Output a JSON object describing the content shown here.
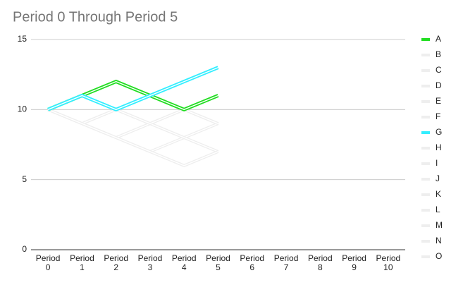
{
  "chart_data": {
    "type": "line",
    "title": "Period 0 Through Period 5",
    "categories": [
      "Period 0",
      "Period 1",
      "Period 2",
      "Period 3",
      "Period 4",
      "Period 5",
      "Period 6",
      "Period 7",
      "Period 8",
      "Period 9",
      "Period 10"
    ],
    "ylim": [
      0,
      15
    ],
    "yticks": [
      0,
      5,
      10,
      15
    ],
    "grid": true,
    "legend": "right",
    "series": [
      {
        "name": "A",
        "color": "#22dd22",
        "values": [
          10,
          11,
          12,
          11,
          10,
          11,
          null,
          null,
          null,
          null,
          null
        ]
      },
      {
        "name": "B",
        "color": "#eeeeee",
        "values": [
          10,
          11,
          12,
          11,
          10,
          11,
          null,
          null,
          null,
          null,
          null
        ]
      },
      {
        "name": "C",
        "color": "#eeeeee",
        "values": [
          10,
          9,
          8,
          7,
          6,
          7,
          null,
          null,
          null,
          null,
          null
        ]
      },
      {
        "name": "D",
        "color": "#eeeeee",
        "values": [
          10,
          9,
          10,
          9,
          10,
          9,
          null,
          null,
          null,
          null,
          null
        ]
      },
      {
        "name": "E",
        "color": "#eeeeee",
        "values": [
          10,
          9,
          8,
          9,
          8,
          7,
          null,
          null,
          null,
          null,
          null
        ]
      },
      {
        "name": "F",
        "color": "#eeeeee",
        "values": [
          10,
          9,
          10,
          11,
          10,
          9,
          null,
          null,
          null,
          null,
          null
        ]
      },
      {
        "name": "G",
        "color": "#33eeff",
        "values": [
          10,
          11,
          10,
          11,
          12,
          13,
          null,
          null,
          null,
          null,
          null
        ]
      },
      {
        "name": "H",
        "color": "#eeeeee",
        "values": [
          10,
          9,
          8,
          7,
          8,
          9,
          null,
          null,
          null,
          null,
          null
        ]
      },
      {
        "name": "I",
        "color": "#eeeeee",
        "values": [
          10,
          11,
          10,
          9,
          8,
          9,
          null,
          null,
          null,
          null,
          null
        ]
      },
      {
        "name": "J",
        "color": "#eeeeee",
        "values": [
          10,
          11,
          10,
          11,
          10,
          9,
          null,
          null,
          null,
          null,
          null
        ]
      },
      {
        "name": "K",
        "color": "#eeeeee",
        "values": [
          10,
          9,
          8,
          9,
          10,
          9,
          null,
          null,
          null,
          null,
          null
        ]
      },
      {
        "name": "L",
        "color": "#eeeeee",
        "values": [
          10,
          11,
          12,
          11,
          12,
          13,
          null,
          null,
          null,
          null,
          null
        ]
      },
      {
        "name": "M",
        "color": "#eeeeee",
        "values": [
          10,
          9,
          10,
          9,
          8,
          7,
          null,
          null,
          null,
          null,
          null
        ]
      },
      {
        "name": "N",
        "color": "#eeeeee",
        "values": [
          10,
          11,
          10,
          9,
          10,
          9,
          null,
          null,
          null,
          null,
          null
        ]
      },
      {
        "name": "O",
        "color": "#eeeeee",
        "values": [
          10,
          9,
          8,
          7,
          6,
          7,
          null,
          null,
          null,
          null,
          null
        ]
      }
    ]
  }
}
